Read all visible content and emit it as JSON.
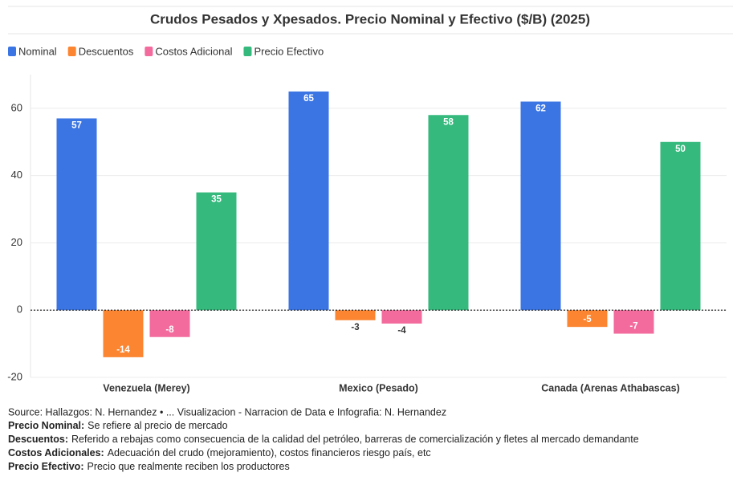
{
  "chart_data": {
    "type": "bar",
    "title": "Crudos Pesados y Xpesados. Precio Nominal y Efectivo ($/B) (2025)",
    "categories": [
      "Venezuela (Merey)",
      "Mexico (Pesado)",
      "Canada (Arenas Athabascas)"
    ],
    "series": [
      {
        "name": "Nominal",
        "color": "#3b75e3",
        "values": [
          57,
          65,
          62
        ]
      },
      {
        "name": "Descuentos",
        "color": "#fb8531",
        "values": [
          -14,
          -3,
          -5
        ]
      },
      {
        "name": "Costos Adicional",
        "color": "#f26b9c",
        "values": [
          -8,
          -4,
          -7
        ]
      },
      {
        "name": "Precio Efectivo",
        "color": "#35b97d",
        "values": [
          35,
          58,
          50
        ]
      }
    ],
    "ylim": [
      -20,
      70
    ],
    "yticks": [
      -20,
      0,
      20,
      40,
      60
    ],
    "grid": true,
    "legend": "top-left",
    "source": "Source: Hallazgos: N. Hernandez • ... Visualizacion - Narracion de Data e Infografia: N. Hernandez",
    "notes": [
      {
        "label": "Precio Nominal:",
        "text": "Se refiere al precio de mercado"
      },
      {
        "label": "Descuentos:",
        "text": "Referido a rebajas como consecuencia de la calidad del petróleo, barreras de comercialización y fletes al mercado demandante"
      },
      {
        "label": "Costos Adicionales:",
        "text": "Adecuación del crudo (mejoramiento), costos financieros riesgo país, etc"
      },
      {
        "label": "Precio Efectivo:",
        "text": "Precio que realmente reciben los productores"
      }
    ]
  }
}
